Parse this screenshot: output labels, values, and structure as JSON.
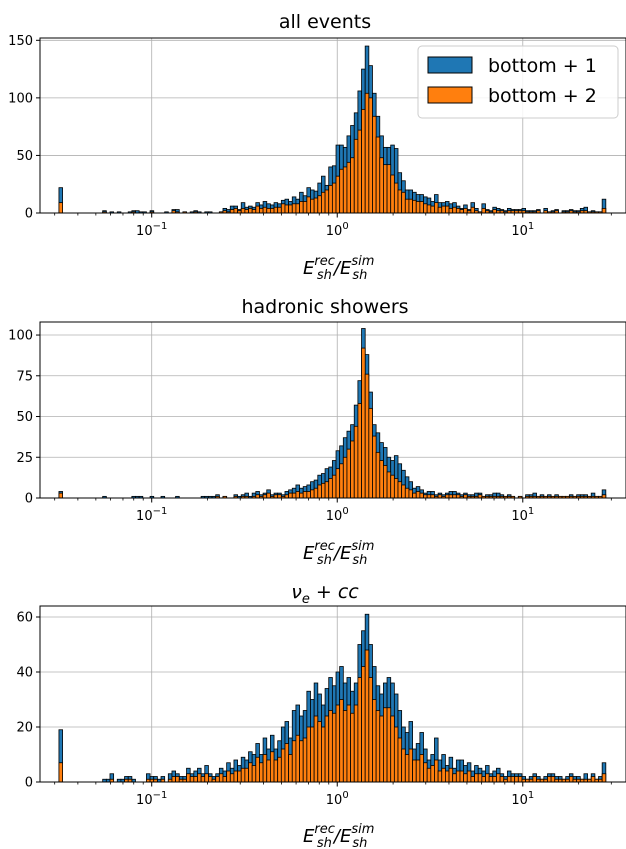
{
  "chart_data": [
    {
      "type": "bar",
      "title": "all events",
      "x_scale": "log",
      "xlim": [
        0.025,
        36
      ],
      "ylim": [
        0,
        152
      ],
      "yticks": [
        0,
        50,
        100,
        150
      ],
      "xticks": [
        {
          "value": 0.1,
          "base": "10",
          "exp": "−1"
        },
        {
          "value": 1,
          "base": "10",
          "exp": "0"
        },
        {
          "value": 10,
          "base": "10",
          "exp": "1"
        }
      ],
      "xlabel": {
        "main1": "E",
        "sup1": "rec",
        "sub1": "sh",
        "slash": "/",
        "main2": "E",
        "sup2": "sim",
        "sub2": "sh"
      },
      "grid": true,
      "legend": {
        "placement": "top-right",
        "entries": [
          {
            "label": "bottom + 1",
            "color": "#1f77b4"
          },
          {
            "label": "bottom + 2",
            "color": "#ff7f0e"
          }
        ]
      },
      "bins": {
        "log10_start": -1.5,
        "log10_width": 0.01965,
        "count": 150
      },
      "series": [
        {
          "color": "#1f77b4",
          "values": [
            22,
            0,
            0,
            0,
            0,
            0,
            0,
            0,
            0,
            0,
            0,
            0,
            2,
            0,
            1,
            0,
            1,
            0,
            0,
            1,
            2,
            2,
            1,
            1,
            0,
            2,
            0,
            0,
            0,
            1,
            0,
            3,
            3,
            0,
            1,
            0,
            1,
            2,
            1,
            0,
            1,
            1,
            0,
            0,
            1,
            4,
            3,
            6,
            6,
            3,
            9,
            5,
            6,
            5,
            9,
            7,
            10,
            8,
            7,
            9,
            8,
            11,
            12,
            10,
            14,
            12,
            18,
            15,
            22,
            20,
            19,
            26,
            32,
            24,
            40,
            41,
            59,
            59,
            57,
            67,
            76,
            87,
            106,
            125,
            145,
            128,
            104,
            84,
            67,
            57,
            57,
            59,
            56,
            35,
            28,
            20,
            20,
            18,
            16,
            16,
            14,
            13,
            10,
            16,
            9,
            9,
            10,
            8,
            9,
            6,
            4,
            7,
            3,
            9,
            4,
            1,
            8,
            3,
            2,
            5,
            4,
            3,
            2,
            4,
            3,
            3,
            3,
            4,
            2,
            2,
            2,
            3,
            0,
            4,
            1,
            2,
            3,
            0,
            2,
            2,
            3,
            2,
            2,
            4,
            5,
            1,
            2,
            1,
            1,
            12
          ]
        },
        {
          "color": "#ff7f0e",
          "values": [
            9,
            0,
            0,
            0,
            0,
            0,
            0,
            0,
            0,
            0,
            0,
            0,
            1,
            0,
            0,
            0,
            0,
            0,
            0,
            0,
            1,
            0,
            0,
            0,
            0,
            1,
            0,
            0,
            0,
            0,
            0,
            2,
            1,
            0,
            1,
            0,
            0,
            1,
            0,
            0,
            0,
            0,
            0,
            0,
            1,
            2,
            1,
            3,
            4,
            2,
            4,
            3,
            4,
            3,
            6,
            4,
            5,
            4,
            4,
            5,
            5,
            8,
            7,
            7,
            8,
            8,
            10,
            10,
            14,
            12,
            13,
            15,
            18,
            20,
            24,
            26,
            32,
            38,
            40,
            44,
            48,
            64,
            72,
            90,
            104,
            100,
            84,
            66,
            48,
            42,
            42,
            33,
            26,
            20,
            18,
            12,
            12,
            11,
            10,
            10,
            8,
            7,
            6,
            9,
            5,
            6,
            6,
            4,
            5,
            4,
            3,
            4,
            2,
            5,
            2,
            1,
            4,
            2,
            1,
            3,
            2,
            2,
            1,
            2,
            2,
            2,
            2,
            2,
            1,
            1,
            1,
            2,
            0,
            2,
            1,
            1,
            2,
            0,
            1,
            1,
            2,
            1,
            1,
            2,
            2,
            1,
            1,
            1,
            1,
            4
          ]
        }
      ]
    },
    {
      "type": "bar",
      "title": "hadronic showers",
      "x_scale": "log",
      "xlim": [
        0.025,
        36
      ],
      "ylim": [
        0,
        108
      ],
      "yticks": [
        0,
        25,
        50,
        75,
        100
      ],
      "xticks": [
        {
          "value": 0.1,
          "base": "10",
          "exp": "−1"
        },
        {
          "value": 1,
          "base": "10",
          "exp": "0"
        },
        {
          "value": 10,
          "base": "10",
          "exp": "1"
        }
      ],
      "xlabel": {
        "main1": "E",
        "sup1": "rec",
        "sub1": "sh",
        "slash": "/",
        "main2": "E",
        "sup2": "sim",
        "sub2": "sh"
      },
      "grid": true,
      "bins": {
        "log10_start": -1.5,
        "log10_width": 0.01965,
        "count": 150
      },
      "series": [
        {
          "color": "#1f77b4",
          "values": [
            4,
            0,
            0,
            0,
            0,
            0,
            0,
            0,
            0,
            0,
            0,
            0,
            1,
            0,
            0,
            0,
            0,
            0,
            0,
            0,
            1,
            1,
            1,
            0,
            0,
            1,
            0,
            0,
            1,
            0,
            0,
            0,
            1,
            0,
            0,
            0,
            0,
            0,
            0,
            1,
            1,
            1,
            1,
            2,
            0,
            1,
            0,
            0,
            2,
            1,
            2,
            3,
            1,
            3,
            4,
            2,
            3,
            5,
            2,
            3,
            3,
            2,
            4,
            5,
            6,
            8,
            6,
            7,
            8,
            10,
            11,
            14,
            15,
            18,
            19,
            23,
            29,
            32,
            37,
            41,
            45,
            57,
            72,
            104,
            88,
            65,
            45,
            40,
            34,
            31,
            25,
            23,
            26,
            21,
            17,
            13,
            10,
            6,
            7,
            5,
            3,
            4,
            4,
            2,
            3,
            2,
            3,
            4,
            4,
            3,
            2,
            3,
            2,
            2,
            3,
            3,
            1,
            2,
            2,
            3,
            3,
            2,
            1,
            2,
            1,
            0,
            1,
            0,
            2,
            2,
            3,
            1,
            2,
            1,
            2,
            1,
            2,
            1,
            1,
            1,
            2,
            1,
            2,
            2,
            2,
            1,
            3,
            1,
            1,
            5
          ]
        },
        {
          "color": "#ff7f0e",
          "values": [
            3,
            0,
            0,
            0,
            0,
            0,
            0,
            0,
            0,
            0,
            0,
            0,
            0,
            0,
            0,
            0,
            0,
            0,
            0,
            0,
            0,
            0,
            0,
            0,
            0,
            0,
            0,
            0,
            0,
            0,
            0,
            0,
            0,
            0,
            0,
            0,
            0,
            0,
            0,
            0,
            0,
            0,
            0,
            1,
            0,
            1,
            0,
            0,
            1,
            0,
            1,
            1,
            0,
            1,
            2,
            1,
            2,
            3,
            1,
            2,
            2,
            1,
            2,
            3,
            3,
            4,
            3,
            4,
            4,
            5,
            6,
            8,
            9,
            10,
            12,
            14,
            18,
            21,
            25,
            30,
            35,
            44,
            58,
            92,
            76,
            55,
            38,
            28,
            23,
            20,
            16,
            14,
            12,
            10,
            8,
            6,
            5,
            3,
            4,
            3,
            2,
            2,
            2,
            1,
            2,
            1,
            2,
            2,
            2,
            2,
            1,
            2,
            1,
            1,
            1,
            2,
            1,
            1,
            1,
            1,
            1,
            1,
            1,
            1,
            1,
            0,
            1,
            0,
            1,
            1,
            1,
            1,
            1,
            1,
            1,
            1,
            1,
            1,
            1,
            1,
            1,
            1,
            1,
            1,
            1,
            1,
            1,
            1,
            1,
            2
          ]
        }
      ]
    },
    {
      "type": "bar",
      "title": {
        "nu": "ν",
        "sub": "e",
        "rest": " + cc"
      },
      "x_scale": "log",
      "xlim": [
        0.025,
        36
      ],
      "ylim": [
        0,
        64
      ],
      "yticks": [
        0,
        20,
        40,
        60
      ],
      "xticks": [
        {
          "value": 0.1,
          "base": "10",
          "exp": "−1"
        },
        {
          "value": 1,
          "base": "10",
          "exp": "0"
        },
        {
          "value": 10,
          "base": "10",
          "exp": "1"
        }
      ],
      "xlabel": {
        "main1": "E",
        "sup1": "rec",
        "sub1": "sh",
        "slash": "/",
        "main2": "E",
        "sup2": "sim",
        "sub2": "sh"
      },
      "grid": true,
      "bins": {
        "log10_start": -1.5,
        "log10_width": 0.01965,
        "count": 150
      },
      "series": [
        {
          "color": "#1f77b4",
          "values": [
            19,
            0,
            0,
            0,
            0,
            0,
            0,
            0,
            0,
            0,
            0,
            0,
            1,
            1,
            3,
            0,
            1,
            1,
            2,
            2,
            1,
            0,
            0,
            0,
            3,
            2,
            2,
            1,
            2,
            0,
            3,
            4,
            3,
            2,
            2,
            5,
            3,
            4,
            5,
            3,
            6,
            3,
            2,
            3,
            5,
            4,
            7,
            5,
            8,
            6,
            9,
            8,
            11,
            10,
            14,
            10,
            16,
            12,
            17,
            12,
            15,
            20,
            22,
            16,
            26,
            28,
            24,
            26,
            33,
            30,
            36,
            32,
            28,
            34,
            38,
            35,
            40,
            42,
            36,
            38,
            33,
            36,
            50,
            55,
            61,
            50,
            42,
            35,
            32,
            36,
            38,
            36,
            32,
            26,
            20,
            18,
            22,
            12,
            14,
            18,
            12,
            8,
            10,
            16,
            8,
            10,
            6,
            9,
            5,
            8,
            8,
            6,
            7,
            4,
            6,
            5,
            4,
            6,
            3,
            4,
            5,
            3,
            2,
            4,
            3,
            3,
            3,
            2,
            1,
            2,
            3,
            2,
            1,
            2,
            3,
            3,
            2,
            2,
            1,
            2,
            3,
            2,
            2,
            1,
            3,
            1,
            3,
            1,
            2,
            7
          ]
        },
        {
          "color": "#ff7f0e",
          "values": [
            7,
            0,
            0,
            0,
            0,
            0,
            0,
            0,
            0,
            0,
            0,
            0,
            0,
            0,
            1,
            0,
            0,
            0,
            1,
            1,
            0,
            0,
            0,
            0,
            1,
            1,
            1,
            0,
            1,
            0,
            1,
            2,
            2,
            1,
            1,
            3,
            2,
            2,
            3,
            2,
            3,
            2,
            1,
            2,
            3,
            2,
            4,
            3,
            4,
            4,
            5,
            5,
            7,
            6,
            9,
            7,
            10,
            8,
            11,
            8,
            9,
            12,
            14,
            10,
            15,
            17,
            15,
            16,
            20,
            20,
            24,
            22,
            20,
            24,
            26,
            25,
            28,
            30,
            26,
            28,
            25,
            28,
            38,
            42,
            48,
            38,
            30,
            26,
            24,
            27,
            27,
            24,
            20,
            16,
            12,
            10,
            12,
            8,
            8,
            10,
            7,
            5,
            6,
            8,
            4,
            5,
            4,
            5,
            3,
            4,
            4,
            3,
            4,
            2,
            3,
            3,
            2,
            3,
            2,
            2,
            3,
            2,
            1,
            2,
            2,
            2,
            2,
            1,
            1,
            1,
            2,
            1,
            1,
            1,
            2,
            2,
            1,
            1,
            1,
            1,
            2,
            1,
            1,
            1,
            1,
            1,
            2,
            1,
            1,
            3
          ]
        }
      ]
    }
  ]
}
